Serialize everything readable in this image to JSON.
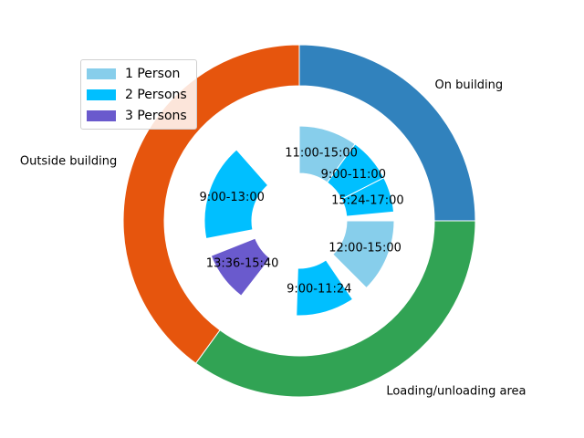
{
  "chart_data": {
    "type": "pie",
    "title": "",
    "outer_ring": [
      {
        "label": "On building",
        "value": 25,
        "color": "#3182bd"
      },
      {
        "label": "Loading/unloading area",
        "value": 35,
        "color": "#31a354"
      },
      {
        "label": "Outside building",
        "value": 40,
        "color": "#e6550d"
      }
    ],
    "inner_ring": [
      {
        "label": "11:00-15:00",
        "value": 10,
        "persons": "1 Person",
        "color": "#87ceeb"
      },
      {
        "label": "9:00-11:00",
        "value": 7.5,
        "persons": "2 Persons",
        "color": "#00bfff"
      },
      {
        "label": "15:24-17:00",
        "value": 6,
        "persons": "2 Persons",
        "color": "#00bfff"
      },
      {
        "label": "gap",
        "value": 1.5,
        "persons": "",
        "color": "#ffffff"
      },
      {
        "label": "12:00-15:00",
        "value": 12.5,
        "persons": "1 Person",
        "color": "#87ceeb"
      },
      {
        "label": "gap",
        "value": 3,
        "persons": "",
        "color": "#ffffff"
      },
      {
        "label": "9:00-11:24",
        "value": 10,
        "persons": "2 Persons",
        "color": "#00bfff"
      },
      {
        "label": "gap",
        "value": 10,
        "persons": "",
        "color": "#ffffff"
      },
      {
        "label": "13:36-15:40",
        "value": 8.5,
        "persons": "3 Persons",
        "color": "#6a5acd"
      },
      {
        "label": "gap",
        "value": 3,
        "persons": "",
        "color": "#ffffff"
      },
      {
        "label": "9:00-13:00",
        "value": 16.5,
        "persons": "2 Persons",
        "color": "#00bfff"
      },
      {
        "label": "gap",
        "value": 11.5,
        "persons": "",
        "color": "#ffffff"
      }
    ],
    "legend": {
      "placement": "upper-left",
      "entries": [
        {
          "label": "1 Person",
          "color": "#87ceeb"
        },
        {
          "label": "2 Persons",
          "color": "#00bfff"
        },
        {
          "label": "3 Persons",
          "color": "#6a5acd"
        }
      ]
    }
  }
}
